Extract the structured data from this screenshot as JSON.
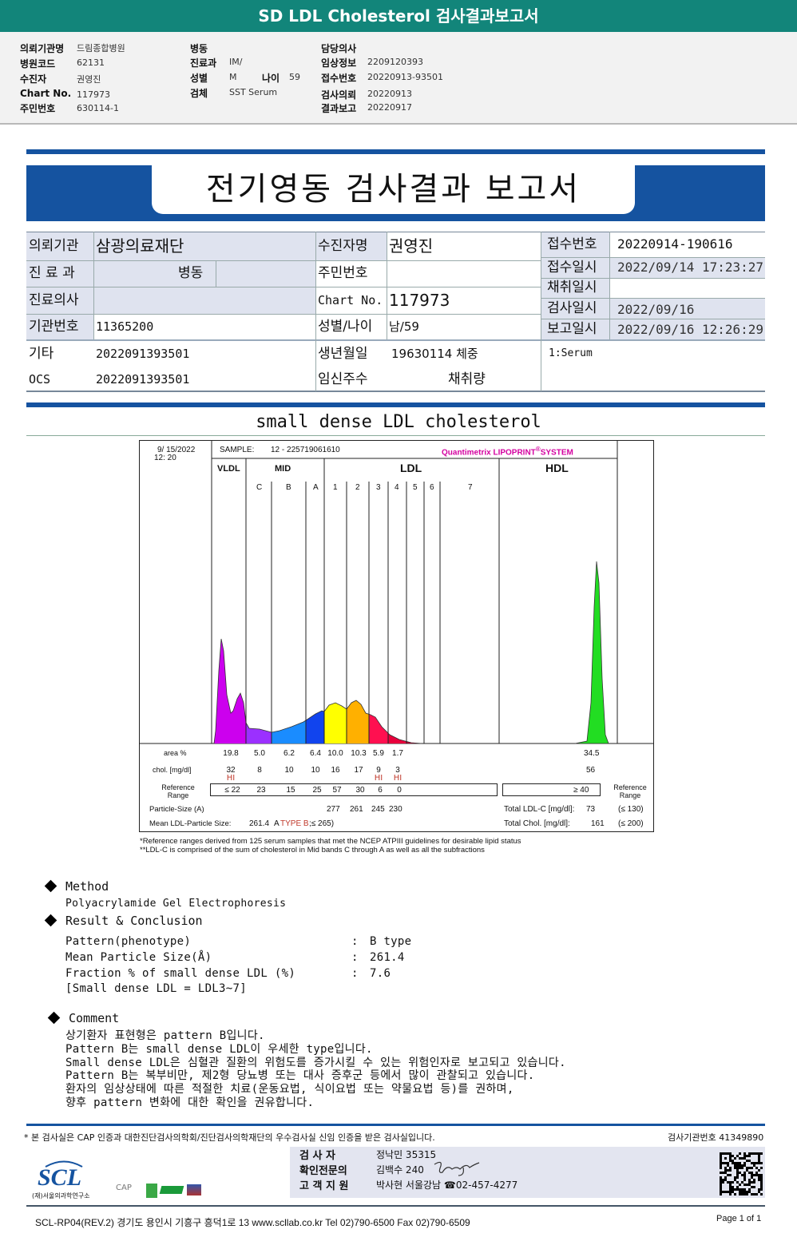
{
  "header": {
    "title": "SD LDL Cholesterol 검사결과보고서"
  },
  "info": {
    "col1": [
      {
        "label": "의뢰기관명",
        "value": "드림종합병원"
      },
      {
        "label": "병원코드",
        "value": "62131"
      },
      {
        "label": "수진자",
        "value": "권영진"
      },
      {
        "label": "Chart No.",
        "value": "117973"
      },
      {
        "label": "주민번호",
        "value": "630114-1"
      }
    ],
    "col2": [
      {
        "label": "병동",
        "value": ""
      },
      {
        "label": "진료과",
        "value": "IM/"
      },
      {
        "label": "성별",
        "value": "M"
      },
      {
        "label": "검체",
        "value": "SST Serum"
      }
    ],
    "age_label": "나이",
    "age_value": "59",
    "col3": [
      {
        "label": "담당의사",
        "value": ""
      },
      {
        "label": "임상정보",
        "value": "2209120393"
      },
      {
        "label": "접수번호",
        "value": "20220913-93501"
      },
      {
        "label": "검사의뢰",
        "value": "20220913"
      },
      {
        "label": "결과보고",
        "value": "20220917"
      }
    ]
  },
  "report": {
    "title": "전기영동 검사결과 보고서",
    "table": {
      "inst_label": "의뢰기관",
      "inst_value": "삼광의료재단",
      "dept_label": "진 료 과",
      "ward_value": "병동",
      "doctor_label": "진료의사",
      "instno_label": "기관번호",
      "instno_value": "11365200",
      "etc_label": "기타",
      "etc_value": "2022091393501",
      "ocs_label": "OCS",
      "ocs_value": "2022091393501",
      "name_label": "수진자명",
      "name_value": "권영진",
      "rrn_label": "주민번호",
      "chart_label": "Chart No.",
      "chart_value": "117973",
      "sexage_label": "성별/나이",
      "sexage_value": "남/59",
      "birth_label": "생년월일",
      "birth_value": "19630114 체중",
      "preg_label": "임신주수",
      "volume_label": "채취량",
      "recno_label": "접수번호",
      "recno_value": "20220914-190616",
      "recdt_label": "접수일시",
      "recdt_value": "2022/09/14 17:23:27",
      "coldt_label": "채취일시",
      "testdt_label": "검사일시",
      "testdt_value": "2022/09/16",
      "repdt_label": "보고일시",
      "repdt_value": "2022/09/16 12:26:29",
      "specimen": "1:Serum"
    },
    "subtitle": "small dense LDL cholesterol"
  },
  "lipoprint": {
    "date": "9/ 15/2022",
    "time": "12: 20",
    "sample_label": "SAMPLE:",
    "sample_value": "12 - 225719061610",
    "brand": "Quantimetrix LIPOPRINT",
    "brand_suffix": "SYSTEM",
    "groups": [
      "VLDL",
      "MID",
      "LDL",
      "HDL"
    ],
    "bands": [
      "C",
      "B",
      "A",
      "1",
      "2",
      "3",
      "4",
      "5",
      "6",
      "7"
    ],
    "row_labels": {
      "area": "area %",
      "chol": "chol. [mg/dl]",
      "ref": "Reference Range",
      "ref_right": "Reference Range",
      "size": "Particle-Size (A)",
      "mean": "Mean LDL-Particle Size:"
    },
    "area": [
      "19.8",
      "5.0",
      "6.2",
      "6.4",
      "10.0",
      "10.3",
      "5.9",
      "1.7"
    ],
    "chol": [
      "32",
      "8",
      "10",
      "10",
      "16",
      "17",
      "9",
      "3"
    ],
    "hi_flags": [
      "HI",
      "",
      "",
      "",
      "",
      "",
      "HI",
      "HI"
    ],
    "ref": [
      "≤ 22",
      "23",
      "15",
      "25",
      "57",
      "30",
      "6",
      "0"
    ],
    "size": [
      "277",
      "261",
      "245",
      "230"
    ],
    "hdl_area": "34.5",
    "hdl_chol": "56",
    "hdl_ref": "≥ 40",
    "mean_value": "261.4",
    "mean_a": "A",
    "mean_type": "TYPE B",
    "mean_range": ";≤ 265)",
    "ldlc_label": "Total LDL-C [mg/dl]:",
    "ldlc_value": "73",
    "ldlc_ref": "(≤ 130)",
    "tc_label": "Total Chol. [mg/dl]:",
    "tc_value": "161",
    "tc_ref": "(≤ 200)",
    "band_colors": [
      "#cc00ee",
      "#9b30ff",
      "#1a8cff",
      "#1144ee",
      "#ffff00",
      "#ffb000",
      "#ff1050",
      "#e8003c",
      "#b00030"
    ],
    "hdl_color": "#22dd22",
    "brand_color": "#d400a0",
    "footnote1": "*Reference ranges derived from 125 serum samples that met the NCEP ATPIII guidelines for desirable lipid status",
    "footnote2": "**LDL-C is comprised of the sum of cholesterol in Mid bands C through A as well as all the subfractions"
  },
  "method": {
    "title": "Method",
    "text": "Polyacrylamide Gel Electrophoresis"
  },
  "result": {
    "title": "Result & Conclusion",
    "rows": [
      {
        "label": "Pattern(phenotype)",
        "value": "B type"
      },
      {
        "label": "Mean Particle Size(Å)",
        "value": "261.4"
      },
      {
        "label": "Fraction % of small dense LDL (%)",
        "value": "7.6"
      }
    ],
    "note": "[Small dense LDL = LDL3~7]"
  },
  "comment": {
    "title": "Comment",
    "lines": [
      "상기환자 표현형은 pattern B입니다.",
      "Pattern B는 small dense LDL이 우세한 type입니다.",
      "Small dense LDL은 심혈관 질환의 위험도를 증가시킬 수 있는 위험인자로 보고되고 있습니다.",
      "Pattern B는 복부비만, 제2형 당뇨병 또는 대사 증후군 등에서 많이 관찰되고 있습니다.",
      "환자의 임상상태에 따른 적절한 치료(운동요법, 식이요법 또는 약물요법 등)를 권하며,",
      "향후 pattern 변화에 대한 확인을 권유합니다."
    ]
  },
  "footer": {
    "notice": "* 본 검사실은 CAP 인증과 대한진단검사의학회/진단검사의학재단의 우수검사실 신임 인증을 받은 검사실입니다.",
    "lab_no": "검사기관번호 41349890",
    "tester_label": "검  사  자",
    "tester_value": "정낙민 35315",
    "confirm_label": "확인전문의",
    "confirm_value": "김백수 240",
    "support_label": "고 객 지 원",
    "support_value": "박사현 서울강남 ☎02-457-4277",
    "logo": "SCL",
    "logo_sub": "(재)서울의과학연구소",
    "cap": "CAP",
    "address": "SCL-RP04(REV.2)  경기도 용인시 기흥구 흥덕1로 13  www.scllab.co.kr  Tel 02)790-6500  Fax 02)790-6509",
    "page": "Page 1 of 1"
  }
}
